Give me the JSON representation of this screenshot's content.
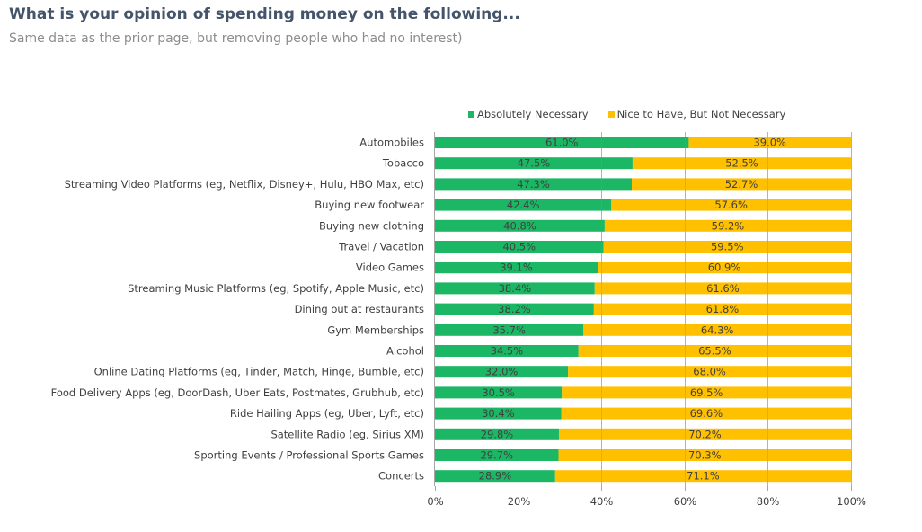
{
  "header": {
    "title": "What is your opinion of spending money on the following...",
    "subtitle": "Same data as the prior page, but removing people who had no interest)"
  },
  "colors": {
    "absolutely_necessary": "#1cb764",
    "nice_to_have": "#ffc000",
    "gridline": "#c8c8c8",
    "axis": "#a6a6a6",
    "text": "#404040"
  },
  "chart_data": {
    "type": "bar",
    "orientation": "horizontal",
    "stacked": "100%",
    "title": "What is your opinion of spending money on the following...",
    "subtitle": "Same data as the prior page, but removing people who had no interest)",
    "xlabel": "",
    "ylabel": "",
    "xlim": [
      0,
      100
    ],
    "x_ticks": [
      "0%",
      "20%",
      "40%",
      "60%",
      "80%",
      "100%"
    ],
    "grid": true,
    "legend_position": "top",
    "categories": [
      "Automobiles",
      "Tobacco",
      "Streaming Video Platforms (eg, Netflix, Disney+, Hulu, HBO Max, etc)",
      "Buying new footwear",
      "Buying new clothing",
      "Travel / Vacation",
      "Video Games",
      "Streaming Music Platforms (eg, Spotify, Apple Music, etc)",
      "Dining out at restaurants",
      "Gym Memberships",
      "Alcohol",
      "Online Dating Platforms (eg, Tinder, Match, Hinge, Bumble, etc)",
      "Food Delivery Apps (eg, DoorDash, Uber Eats, Postmates, Grubhub, etc)",
      "Ride Hailing Apps (eg, Uber, Lyft, etc)",
      "Satellite Radio (eg, Sirius XM)",
      "Sporting Events / Professional Sports Games",
      "Concerts"
    ],
    "series": [
      {
        "name": "Absolutely Necessary",
        "color": "#1cb764",
        "values": [
          61.0,
          47.5,
          47.3,
          42.4,
          40.8,
          40.5,
          39.1,
          38.4,
          38.2,
          35.7,
          34.5,
          32.0,
          30.5,
          30.4,
          29.8,
          29.7,
          28.9
        ]
      },
      {
        "name": "Nice to Have, But Not Necessary",
        "color": "#ffc000",
        "values": [
          39.0,
          52.5,
          52.7,
          57.6,
          59.2,
          59.5,
          60.9,
          61.6,
          61.8,
          64.3,
          65.5,
          68.0,
          69.5,
          69.6,
          70.2,
          70.3,
          71.1
        ]
      }
    ]
  }
}
